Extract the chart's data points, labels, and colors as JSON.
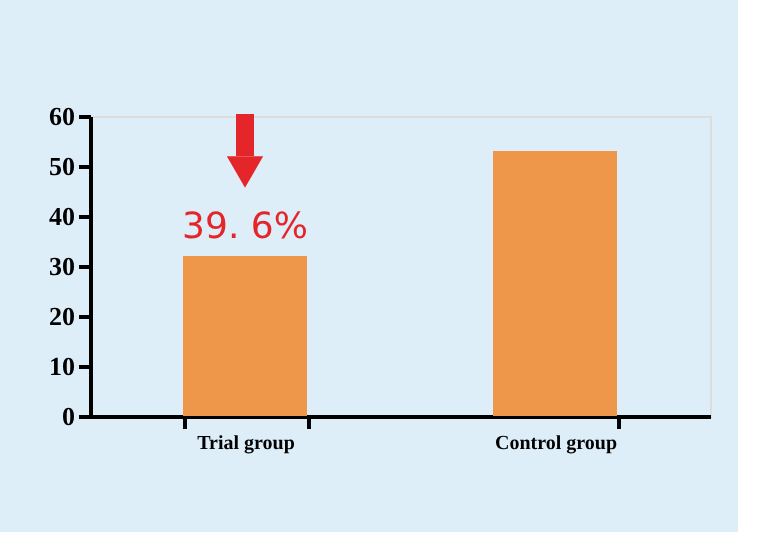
{
  "chart_data": {
    "type": "bar",
    "categories": [
      "Trial group",
      "Control group"
    ],
    "values": [
      32,
      53
    ],
    "color": "#ee9649",
    "ylim": [
      0,
      60
    ],
    "yticks": [
      0,
      10,
      20,
      30,
      40,
      50,
      60
    ],
    "grid": false,
    "annotations": [
      {
        "text": "39. 6%",
        "x": "Trial group",
        "y": 32
      }
    ]
  }
}
